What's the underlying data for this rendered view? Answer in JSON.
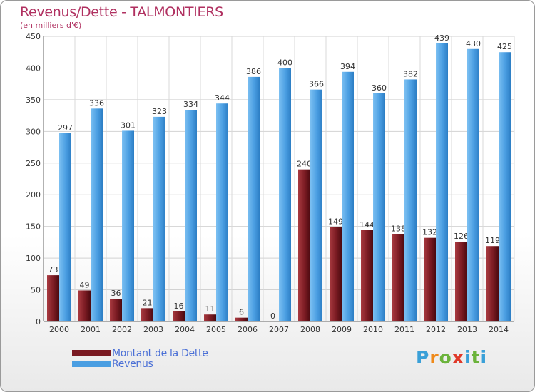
{
  "title": "Revenus/Dette - TALMONTIERS",
  "subtitle": "(en milliers d'€)",
  "colors": {
    "dette": "#7a1a22",
    "revenus": "#4a9ee2",
    "title": "#b03060",
    "legend_text": "#4a6fd6"
  },
  "legend": {
    "dette_label": "Montant de la Dette",
    "revenus_label": "Revenus"
  },
  "logo": {
    "text": "Proxiti",
    "letters": [
      "P",
      "r",
      "o",
      "x",
      "i",
      "t",
      "i"
    ],
    "letter_colors": [
      "#3aa0d8",
      "#ef8a1a",
      "#6bb33b",
      "#e03a2a",
      "#3aa0d8",
      "#6bb33b",
      "#3aa0d8"
    ]
  },
  "chart_data": {
    "type": "bar",
    "title": "Revenus/Dette - TALMONTIERS",
    "ylabel": "(en milliers d'€)",
    "ylim": [
      0,
      450
    ],
    "yticks": [
      0,
      50,
      100,
      150,
      200,
      250,
      300,
      350,
      400,
      450
    ],
    "categories": [
      "2000",
      "2001",
      "2002",
      "2003",
      "2004",
      "2005",
      "2006",
      "2007",
      "2008",
      "2009",
      "2010",
      "2011",
      "2012",
      "2013",
      "2014"
    ],
    "series": [
      {
        "name": "Montant de la Dette",
        "values": [
          73,
          49,
          36,
          21,
          16,
          11,
          6,
          0,
          240,
          149,
          144,
          138,
          132,
          126,
          119
        ]
      },
      {
        "name": "Revenus",
        "values": [
          297,
          336,
          301,
          323,
          334,
          344,
          386,
          400,
          366,
          394,
          360,
          382,
          439,
          430,
          425
        ]
      }
    ],
    "grid": true,
    "legend_position": "bottom-left"
  }
}
